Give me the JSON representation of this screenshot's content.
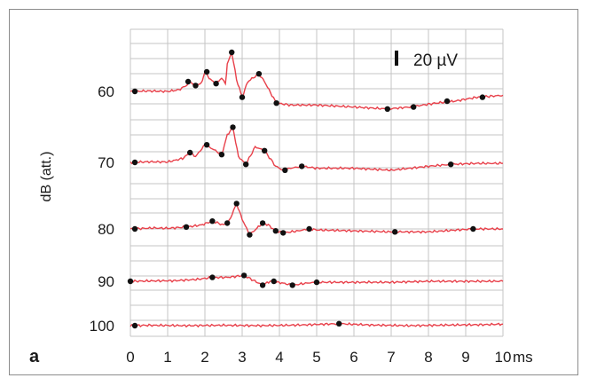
{
  "panel_label": "a",
  "chart_data": {
    "type": "line",
    "title": "",
    "xlabel": "",
    "x_unit_label": "ms",
    "ylabel": "dB (att.)",
    "xlim": [
      0,
      10
    ],
    "x_ticks": [
      0,
      1,
      2,
      3,
      4,
      5,
      6,
      7,
      8,
      9,
      10
    ],
    "scale_bar": {
      "label": "20 µV",
      "value_uV": 20
    },
    "grid": true,
    "line_color": "#e8404a",
    "marker_color": "#111111",
    "series": [
      {
        "name": "60",
        "waveform": [
          [
            0,
            0
          ],
          [
            0.5,
            0.2
          ],
          [
            1,
            0
          ],
          [
            1.3,
            0.8
          ],
          [
            1.5,
            3
          ],
          [
            1.6,
            5
          ],
          [
            1.75,
            3
          ],
          [
            1.9,
            4
          ],
          [
            2.0,
            10
          ],
          [
            2.15,
            6
          ],
          [
            2.3,
            4
          ],
          [
            2.45,
            7
          ],
          [
            2.55,
            4
          ],
          [
            2.6,
            14
          ],
          [
            2.72,
            20
          ],
          [
            2.85,
            6
          ],
          [
            3.0,
            -3
          ],
          [
            3.15,
            5
          ],
          [
            3.3,
            7
          ],
          [
            3.45,
            9
          ],
          [
            3.6,
            5
          ],
          [
            3.8,
            -2
          ],
          [
            3.92,
            -6
          ],
          [
            4.3,
            -7
          ],
          [
            5,
            -7
          ],
          [
            6,
            -8
          ],
          [
            6.9,
            -9
          ],
          [
            7.5,
            -8
          ],
          [
            8.2,
            -6
          ],
          [
            8.7,
            -5
          ],
          [
            9.3,
            -3
          ],
          [
            10,
            -2
          ]
        ],
        "markers": [
          [
            0.12,
            0
          ],
          [
            1.55,
            5
          ],
          [
            1.75,
            3
          ],
          [
            2.05,
            10
          ],
          [
            2.3,
            4
          ],
          [
            2.72,
            20
          ],
          [
            3.0,
            -3
          ],
          [
            3.45,
            9
          ],
          [
            3.92,
            -6
          ],
          [
            6.9,
            -9
          ],
          [
            7.6,
            -8
          ],
          [
            8.5,
            -5
          ],
          [
            9.45,
            -3
          ]
        ]
      },
      {
        "name": "70",
        "waveform": [
          [
            0,
            0
          ],
          [
            0.5,
            0.3
          ],
          [
            1.0,
            0.2
          ],
          [
            1.4,
            2
          ],
          [
            1.6,
            5
          ],
          [
            1.75,
            3
          ],
          [
            2.0,
            9
          ],
          [
            2.2,
            7
          ],
          [
            2.45,
            4
          ],
          [
            2.6,
            14
          ],
          [
            2.75,
            18
          ],
          [
            2.9,
            3
          ],
          [
            3.1,
            -1
          ],
          [
            3.35,
            8
          ],
          [
            3.6,
            6
          ],
          [
            3.9,
            -2
          ],
          [
            4.1,
            -4
          ],
          [
            4.3,
            -3
          ],
          [
            4.6,
            -2
          ],
          [
            5,
            -3
          ],
          [
            6,
            -3
          ],
          [
            7,
            -4
          ],
          [
            8,
            -2
          ],
          [
            8.6,
            -1
          ],
          [
            9.3,
            -0.5
          ],
          [
            10,
            -0.5
          ]
        ],
        "markers": [
          [
            0.12,
            0
          ],
          [
            1.6,
            5
          ],
          [
            2.05,
            9
          ],
          [
            2.45,
            4
          ],
          [
            2.75,
            18
          ],
          [
            3.1,
            -1
          ],
          [
            3.6,
            6
          ],
          [
            4.15,
            -4
          ],
          [
            4.6,
            -2
          ],
          [
            8.6,
            -1
          ]
        ]
      },
      {
        "name": "80",
        "waveform": [
          [
            0,
            0
          ],
          [
            0.6,
            0.5
          ],
          [
            1.0,
            0.3
          ],
          [
            1.5,
            1
          ],
          [
            1.9,
            2
          ],
          [
            2.2,
            4
          ],
          [
            2.5,
            2
          ],
          [
            2.65,
            4
          ],
          [
            2.85,
            13
          ],
          [
            3.0,
            5
          ],
          [
            3.2,
            -3
          ],
          [
            3.55,
            3
          ],
          [
            3.7,
            2
          ],
          [
            3.9,
            -1
          ],
          [
            4.1,
            -2
          ],
          [
            4.5,
            -1
          ],
          [
            4.8,
            0
          ],
          [
            5,
            -0.5
          ],
          [
            6,
            -1
          ],
          [
            7,
            -1.5
          ],
          [
            8,
            -1.5
          ],
          [
            9.2,
            0
          ],
          [
            10,
            0
          ]
        ],
        "markers": [
          [
            0.12,
            0
          ],
          [
            1.5,
            1
          ],
          [
            2.2,
            4
          ],
          [
            2.6,
            3
          ],
          [
            2.85,
            13
          ],
          [
            3.2,
            -3
          ],
          [
            3.55,
            3
          ],
          [
            3.9,
            -1
          ],
          [
            4.1,
            -2
          ],
          [
            4.8,
            0
          ],
          [
            7.1,
            -1.5
          ],
          [
            9.2,
            0
          ]
        ]
      },
      {
        "name": "90",
        "waveform": [
          [
            0,
            0
          ],
          [
            0.6,
            0.2
          ],
          [
            1.2,
            0.3
          ],
          [
            1.8,
            1
          ],
          [
            2.2,
            2
          ],
          [
            2.6,
            2
          ],
          [
            3.05,
            3
          ],
          [
            3.3,
            0.5
          ],
          [
            3.55,
            -2
          ],
          [
            3.75,
            0
          ],
          [
            3.95,
            -0.5
          ],
          [
            4.1,
            -1
          ],
          [
            4.35,
            -2
          ],
          [
            4.7,
            -1
          ],
          [
            5.0,
            -0.5
          ],
          [
            6,
            -0.5
          ],
          [
            7,
            -0.5
          ],
          [
            8,
            0
          ],
          [
            9,
            0
          ],
          [
            10,
            0
          ]
        ],
        "markers": [
          [
            0,
            0
          ],
          [
            2.2,
            2
          ],
          [
            3.05,
            3
          ],
          [
            3.55,
            -2
          ],
          [
            3.85,
            0
          ],
          [
            4.35,
            -2
          ],
          [
            5.0,
            -0.5
          ]
        ]
      },
      {
        "name": "100",
        "waveform": [
          [
            0,
            0
          ],
          [
            0.5,
            0.2
          ],
          [
            1.5,
            0
          ],
          [
            2.5,
            0.2
          ],
          [
            3.5,
            0
          ],
          [
            4.5,
            0.3
          ],
          [
            5.6,
            1
          ],
          [
            6.5,
            0.3
          ],
          [
            7.5,
            0
          ],
          [
            8.5,
            0.3
          ],
          [
            9.5,
            0.5
          ],
          [
            10,
            0.8
          ]
        ],
        "markers": [
          [
            0.12,
            0
          ],
          [
            5.6,
            1
          ]
        ]
      }
    ]
  }
}
